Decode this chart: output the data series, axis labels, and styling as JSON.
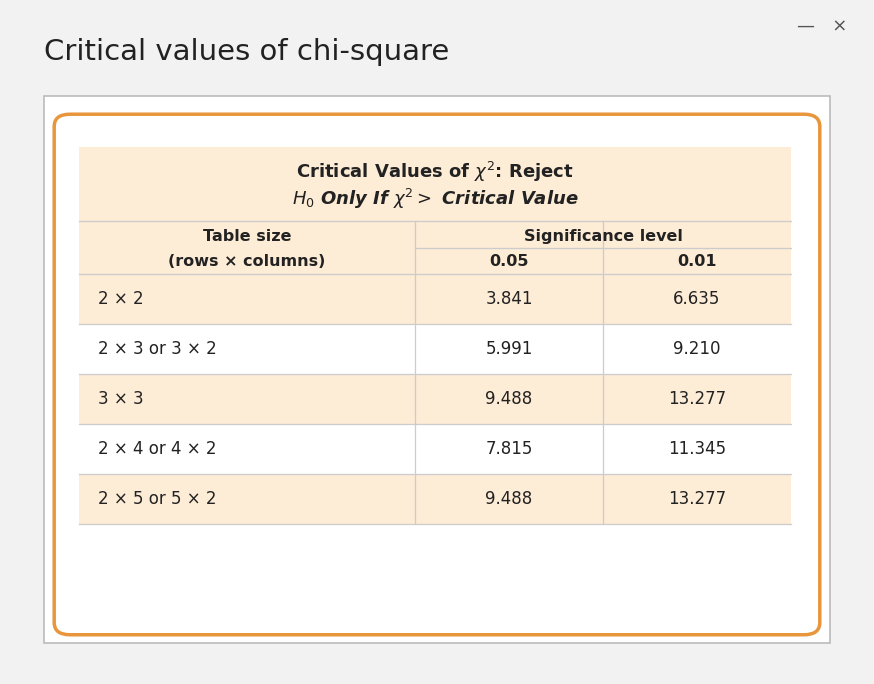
{
  "title": "Critical values of chi-square",
  "rows": [
    [
      "2 × 2",
      "3.841",
      "6.635"
    ],
    [
      "2 × 3 or 3 × 2",
      "5.991",
      "9.210"
    ],
    [
      "3 × 3",
      "9.488",
      "13.277"
    ],
    [
      "2 × 4 or 4 × 2",
      "7.815",
      "11.345"
    ],
    [
      "2 × 5 or 5 × 2",
      "9.488",
      "13.277"
    ]
  ],
  "orange_border": "#E8963C",
  "orange_bg": "#FDECD6",
  "white_bg": "#FFFFFF",
  "outer_border": "#BBBBBB",
  "title_color": "#222222",
  "text_color": "#222222",
  "fig_bg": "#F2F2F2",
  "line_color": "#CCCCCC"
}
